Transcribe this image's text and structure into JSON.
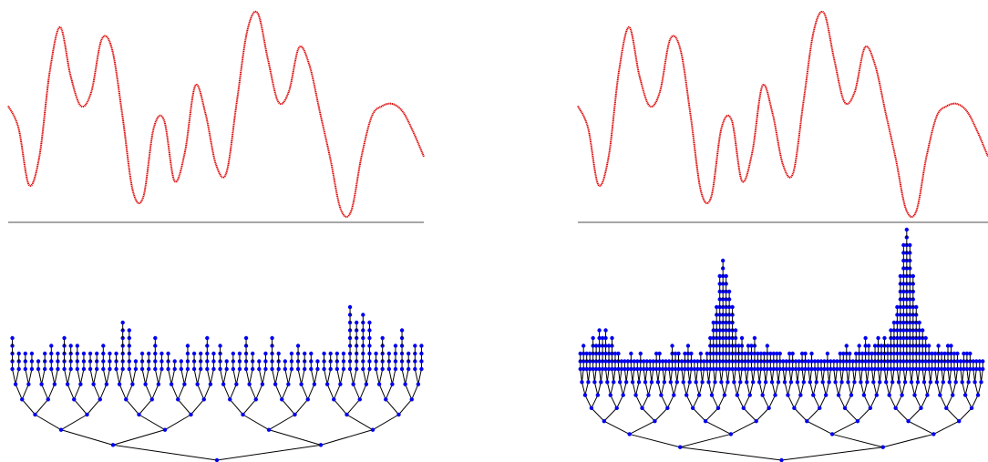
{
  "panels": [
    {
      "id": "left",
      "signal": {
        "color": "#dd0000",
        "x": [
          0.0,
          0.025,
          0.05,
          0.075,
          0.1,
          0.125,
          0.15,
          0.175,
          0.2,
          0.225,
          0.25,
          0.275,
          0.3,
          0.325,
          0.35,
          0.375,
          0.4,
          0.425,
          0.45,
          0.475,
          0.5,
          0.525,
          0.55,
          0.575,
          0.6,
          0.625,
          0.65,
          0.675,
          0.7,
          0.725,
          0.75,
          0.775,
          0.8,
          0.825,
          0.85,
          0.875,
          0.9,
          0.925,
          0.95,
          0.975,
          1.0
        ],
        "y": [
          0.47,
          0.58,
          0.86,
          0.72,
          0.3,
          0.08,
          0.32,
          0.47,
          0.4,
          0.14,
          0.19,
          0.52,
          0.89,
          0.92,
          0.58,
          0.54,
          0.84,
          0.7,
          0.37,
          0.51,
          0.76,
          0.8,
          0.45,
          0.1,
          0.01,
          0.24,
          0.45,
          0.4,
          0.18,
          0.27,
          0.5,
          0.73,
          0.98,
          0.99,
          0.72,
          0.52,
          0.47,
          0.46,
          0.5,
          0.6,
          0.72
        ]
      },
      "tree": {
        "node_color": "#0000ee",
        "edge_color": "#000000",
        "levels": 6,
        "leaf_heights": [
          4,
          2,
          2,
          2,
          1,
          2,
          3,
          2,
          4,
          3,
          3,
          2,
          2,
          2,
          3,
          2,
          2,
          6,
          5,
          1,
          2,
          2,
          4,
          2,
          2,
          1,
          1,
          3,
          2,
          2,
          4,
          2,
          3,
          1,
          2,
          2,
          4,
          2,
          1,
          2,
          4,
          2,
          1,
          2,
          3,
          2,
          2,
          1,
          2,
          2,
          2,
          2,
          8,
          6,
          7,
          6,
          2,
          4,
          2,
          3,
          5,
          2,
          3,
          3
        ]
      }
    },
    {
      "id": "right",
      "signal": {
        "color": "#dd0000",
        "x": [
          0.0,
          0.025,
          0.05,
          0.075,
          0.1,
          0.125,
          0.15,
          0.175,
          0.2,
          0.225,
          0.25,
          0.275,
          0.3,
          0.325,
          0.35,
          0.375,
          0.4,
          0.425,
          0.45,
          0.475,
          0.5,
          0.525,
          0.55,
          0.575,
          0.6,
          0.625,
          0.65,
          0.675,
          0.7,
          0.725,
          0.75,
          0.775,
          0.8,
          0.825,
          0.85,
          0.875,
          0.9,
          0.925,
          0.95,
          0.975,
          1.0
        ],
        "y": [
          0.47,
          0.58,
          0.86,
          0.72,
          0.3,
          0.08,
          0.32,
          0.47,
          0.4,
          0.14,
          0.19,
          0.52,
          0.89,
          0.92,
          0.58,
          0.54,
          0.84,
          0.7,
          0.37,
          0.51,
          0.76,
          0.8,
          0.45,
          0.1,
          0.01,
          0.24,
          0.45,
          0.4,
          0.18,
          0.27,
          0.5,
          0.73,
          0.98,
          0.99,
          0.72,
          0.52,
          0.47,
          0.46,
          0.5,
          0.6,
          0.72
        ]
      },
      "tree": {
        "node_color": "#0000ee",
        "edge_color": "#000000",
        "levels": 7,
        "leaf_heights": [
          2,
          3,
          2,
          2,
          4,
          3,
          5,
          4,
          5,
          3,
          4,
          2,
          2,
          1,
          1,
          1,
          2,
          1,
          1,
          2,
          1,
          1,
          1,
          1,
          2,
          2,
          1,
          1,
          1,
          3,
          2,
          2,
          1,
          2,
          3,
          2,
          1,
          1,
          2,
          1,
          2,
          4,
          6,
          8,
          12,
          14,
          12,
          10,
          8,
          5,
          3,
          4,
          2,
          3,
          3,
          4,
          2,
          2,
          2,
          3,
          2,
          2,
          2,
          2,
          1,
          1,
          2,
          2,
          1,
          1,
          2,
          2,
          1,
          2,
          1,
          1,
          1,
          1,
          2,
          1,
          1,
          1,
          2,
          2,
          3,
          2,
          1,
          2,
          3,
          2,
          4,
          3,
          2,
          3,
          4,
          3,
          4,
          3,
          5,
          6,
          8,
          12,
          16,
          18,
          16,
          12,
          8,
          6,
          5,
          4,
          3,
          2,
          2,
          3,
          2,
          2,
          3,
          3,
          2,
          2,
          1,
          2,
          2,
          2,
          1,
          1,
          1,
          1
        ]
      }
    }
  ]
}
